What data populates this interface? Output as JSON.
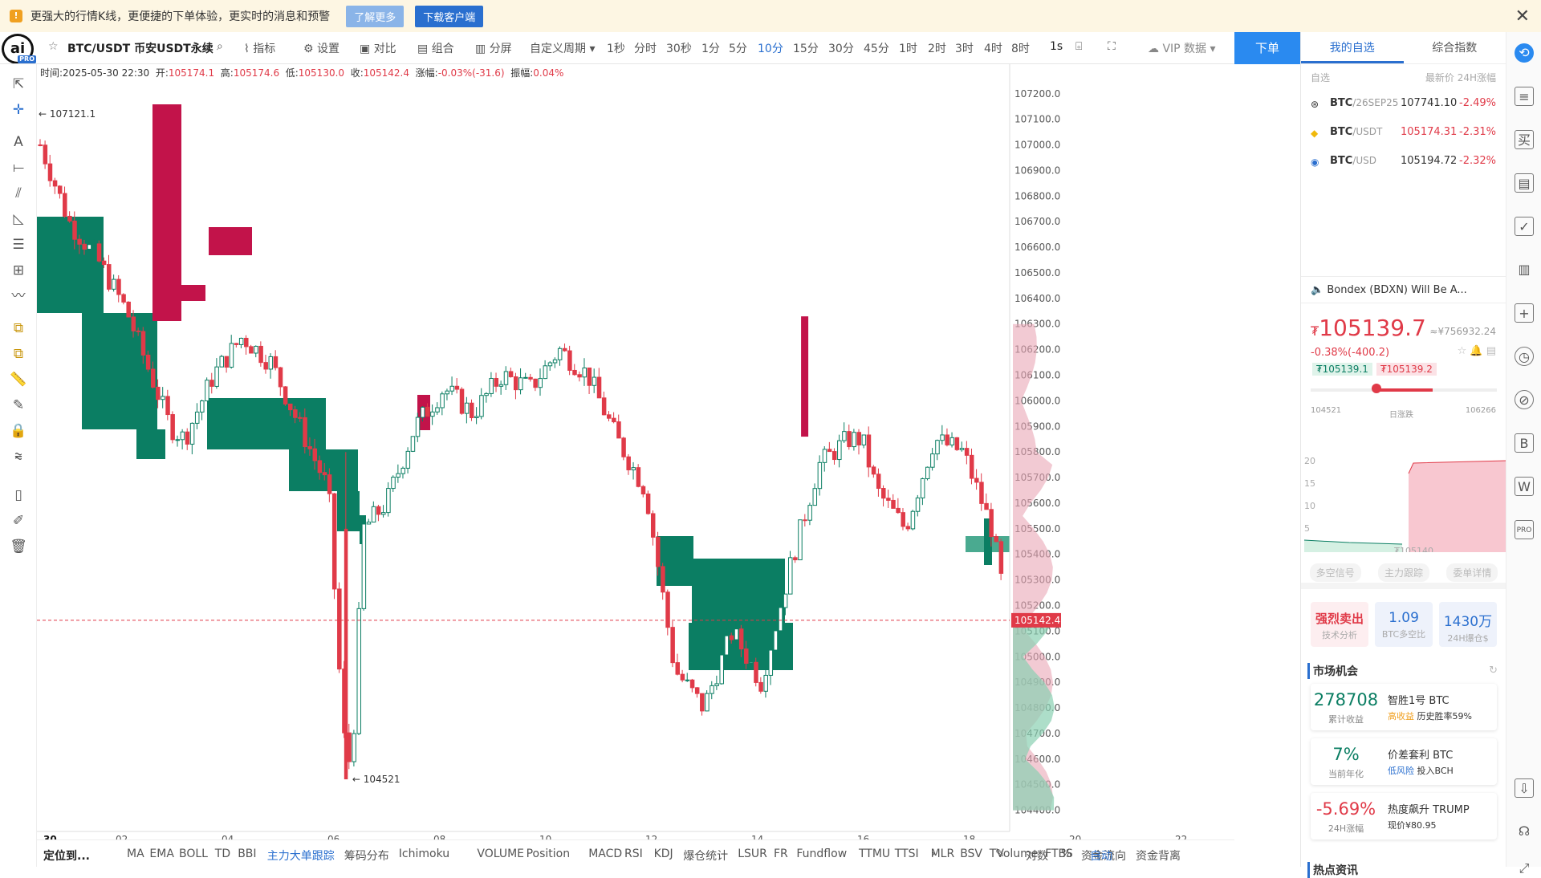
{
  "banner": {
    "icon": "warning-icon",
    "text": "更强大的行情K线，更便捷的下单体验，更实时的消息和预警",
    "learn_more": "了解更多",
    "download": "下载客户端"
  },
  "logo": {
    "text": "ai",
    "badge": "PRO"
  },
  "toolbar": {
    "symbol": "BTC/USDT 币安USDT永续",
    "indicators": "指标",
    "settings": "设置",
    "compare": "对比",
    "combine": "组合",
    "split": "分屏",
    "custom_period": "自定义周期",
    "periods": [
      "1秒",
      "分时",
      "30秒",
      "1分",
      "5分",
      "10分",
      "15分",
      "30分",
      "45分",
      "1时",
      "2时",
      "3时",
      "4时",
      "8时",
      "1s"
    ],
    "active_period": "10分",
    "vip": "VIP 数据",
    "order": "下单"
  },
  "ohlc": {
    "time": "时间:2025-05-30 22:30",
    "open_label": "开:",
    "open": "105174.1",
    "high_label": "高:",
    "high": "105174.6",
    "low_label": "低:",
    "low": "105130.0",
    "close_label": "收:",
    "close": "105142.4",
    "change_label": "涨幅:",
    "change": "-0.03%(-31.6)",
    "amp_label": "振幅:",
    "amp": "0.04%"
  },
  "chart_data": {
    "type": "candlestick",
    "price_axis": [
      "107200.0",
      "107100.0",
      "107000.0",
      "106900.0",
      "106800.0",
      "106700.0",
      "106600.0",
      "106500.0",
      "106400.0",
      "106300.0",
      "106200.0",
      "106100.0",
      "106000.0",
      "105900.0",
      "105800.0",
      "105700.0",
      "105600.0",
      "105500.0",
      "105400.0",
      "105300.0",
      "105200.0",
      "105100.0",
      "105000.0",
      "104900.0",
      "104800.0",
      "104700.0",
      "104600.0",
      "104500.0",
      "104400.0"
    ],
    "ylim": [
      104380,
      107240
    ],
    "x_ticks": [
      "30",
      "02",
      "04",
      "06",
      "08",
      "10",
      "12",
      "14",
      "16",
      "18",
      "20",
      "22"
    ],
    "current_price": "105142.4",
    "high_marker": "107121.1",
    "low_marker": "104521",
    "up_color": "#0b7e63",
    "down_color": "#c2134a"
  },
  "watchlist": {
    "tabs": [
      "我的自选",
      "综合指数"
    ],
    "header_left": "自选",
    "header_right": "最新价 24H涨幅",
    "items": [
      {
        "icon": "binance-icon",
        "name": "BTC",
        "suffix": "/26SEP25",
        "price": "107741.10",
        "change": "-2.49%"
      },
      {
        "icon": "binance-diamond-icon",
        "name": "BTC",
        "suffix": "/USDT",
        "price": "105174.31",
        "change": "-2.31%"
      },
      {
        "icon": "coinbase-icon",
        "name": "BTC",
        "suffix": "/USD",
        "price": "105194.72",
        "change": "-2.32%"
      }
    ]
  },
  "news": {
    "text": "Bondex (BDXN) Will Be A..."
  },
  "ticker": {
    "currency": "₮",
    "price": "105139.7",
    "cny": "≈¥756932.24",
    "change": "-0.38%(-400.2)",
    "bid": "₮105139.1",
    "ask": "₮105139.2",
    "range_low": "104521",
    "range_label": "日涨跌",
    "range_high": "106266",
    "depth_price": "₮105140",
    "depth_axis": [
      "20",
      "15",
      "10",
      "5"
    ]
  },
  "analysis_tabs": [
    "多空信号",
    "主力跟踪",
    "委单详情"
  ],
  "stats": [
    {
      "value": "强烈卖出",
      "label": "技术分析"
    },
    {
      "value": "1.09",
      "label": "BTC多空比"
    },
    {
      "value": "1430万",
      "label": "24H爆仓$"
    }
  ],
  "market": {
    "title": "市场机会",
    "items": [
      {
        "value": "278708",
        "sub": "累计收益",
        "name": "智胜1号 BTC",
        "tag": "高收益",
        "desc": "历史胜率59%"
      },
      {
        "value": "7%",
        "sub": "当前年化",
        "name": "价差套利 BTC",
        "tag": "低风险",
        "desc": "投入BCH"
      },
      {
        "value": "-5.69%",
        "sub": "24H涨幅",
        "name": "热度飙升 TRUMP",
        "tag": "",
        "desc": "现价¥80.95"
      }
    ]
  },
  "hot_news": {
    "title": "热点资讯"
  },
  "bottom": {
    "locate": "定位到...",
    "indicators": [
      "MA",
      "EMA",
      "BOLL",
      "TD",
      "BBI",
      "主力大单跟踪",
      "筹码分布",
      "Ichimoku",
      "VOLUME",
      "Position",
      "MACD",
      "RSI",
      "KDJ",
      "爆仓统计",
      "LSUR",
      "FR",
      "Fundflow",
      "TTMU",
      "TTSI",
      "MLR",
      "BSV",
      "TVolume",
      "FTBS",
      "资金流向",
      "资金背离"
    ],
    "active": "主力大单跟踪",
    "log": "对数",
    "percent": "%",
    "auto": "自动"
  }
}
